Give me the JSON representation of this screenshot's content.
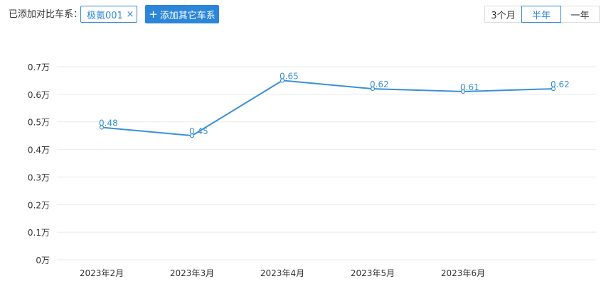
{
  "toolbar": {
    "label": "已添加对比车系：",
    "chip": {
      "label": "极氪001",
      "close_glyph": "×"
    },
    "add_button": {
      "glyph": "+",
      "label": "添加其它车系"
    }
  },
  "period_tabs": [
    {
      "label": "3个月",
      "active": false
    },
    {
      "label": "半年",
      "active": true
    },
    {
      "label": "一年",
      "active": false
    }
  ],
  "colors": {
    "accent": "#2f86d8",
    "line": "#3a8fd6",
    "grid": "#e9e9e9",
    "axis_text": "#333333"
  },
  "chart_data": {
    "type": "line",
    "title": "",
    "xlabel": "",
    "ylabel": "",
    "categories": [
      "2023年2月",
      "2023年3月",
      "2023年4月",
      "2023年5月",
      "2023年6月",
      ""
    ],
    "series": [
      {
        "values": [
          0.48,
          0.45,
          0.65,
          0.62,
          0.61,
          0.62
        ]
      }
    ],
    "data_labels": [
      "0.48",
      "0.45",
      "0.65",
      "0.62",
      "0.61",
      "0.62"
    ],
    "ylim": [
      0,
      0.7
    ],
    "yticks": [
      0,
      0.1,
      0.2,
      0.3,
      0.4,
      0.5,
      0.6,
      0.7
    ],
    "ytick_labels": [
      "0万",
      "0.1万",
      "0.2万",
      "0.3万",
      "0.4万",
      "0.5万",
      "0.6万",
      "0.7万"
    ],
    "grid": true,
    "legend": "none"
  }
}
